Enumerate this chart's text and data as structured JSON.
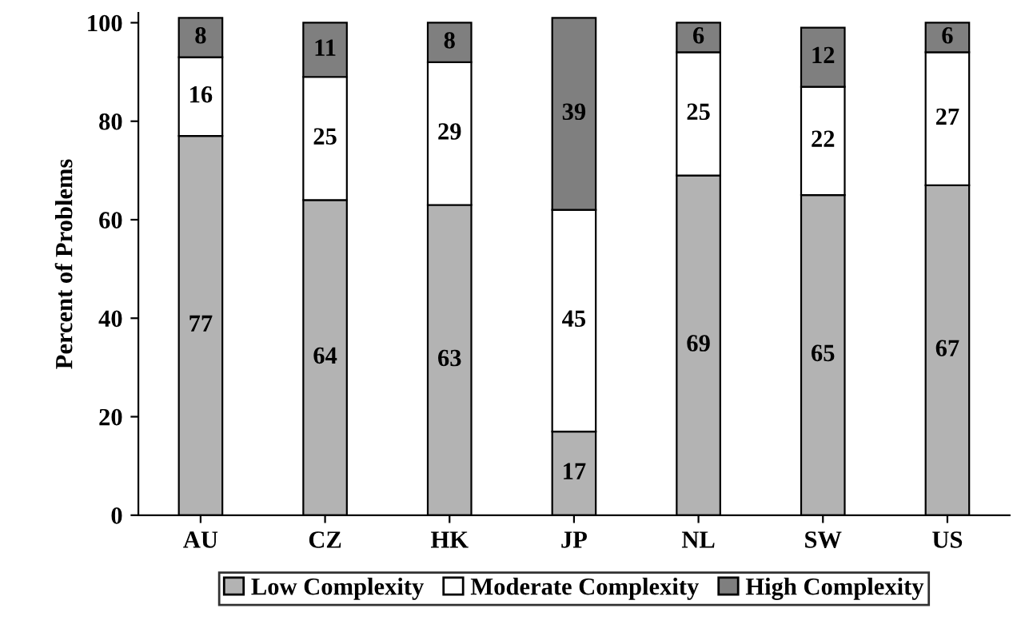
{
  "chart_data": {
    "type": "bar",
    "stacked": true,
    "ylabel": "Percent of Problems",
    "categories": [
      "AU",
      "CZ",
      "HK",
      "JP",
      "NL",
      "SW",
      "US"
    ],
    "series": [
      {
        "name": "Low Complexity",
        "color": "#b3b3b3",
        "values": [
          77,
          64,
          63,
          17,
          69,
          65,
          67
        ]
      },
      {
        "name": "Moderate Complexity",
        "color": "#ffffff",
        "values": [
          16,
          25,
          29,
          45,
          25,
          22,
          27
        ]
      },
      {
        "name": "High Complexity",
        "color": "#7f7f7f",
        "values": [
          8,
          11,
          8,
          39,
          6,
          12,
          6
        ]
      }
    ],
    "ylim": [
      0,
      102
    ],
    "yticks": [
      0,
      20,
      40,
      60,
      80,
      100
    ],
    "grid": false,
    "legend": "bottom",
    "data_labels": true
  }
}
